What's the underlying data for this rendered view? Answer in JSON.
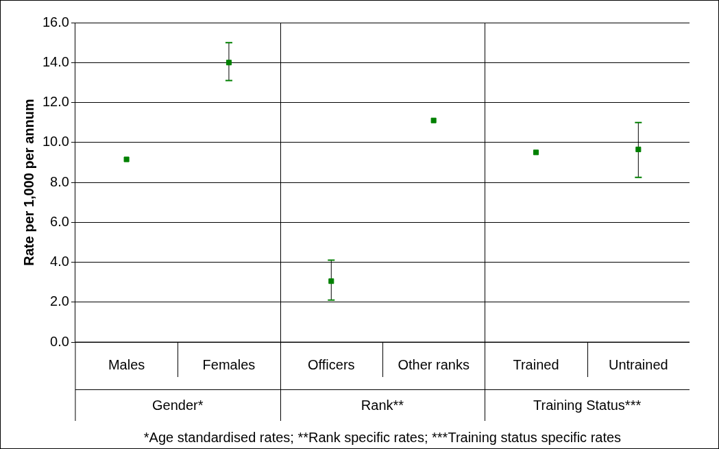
{
  "chart_data": {
    "type": "scatter",
    "ylabel": "Rate per 1,000 per annum",
    "categories": [
      "Males",
      "Females",
      "Officers",
      "Other ranks",
      "Trained",
      "Untrained"
    ],
    "series": [
      {
        "color": "#008000",
        "values": [
          9.15,
          14.0,
          3.05,
          11.1,
          9.5,
          9.65
        ],
        "errors": [
          null,
          [
            13.1,
            15.0
          ],
          [
            2.1,
            4.1
          ],
          null,
          null,
          [
            8.25,
            11.0
          ]
        ]
      }
    ],
    "ylim": [
      0,
      16
    ],
    "yticks": [
      {
        "value": 0,
        "label": "0.0"
      },
      {
        "value": 2,
        "label": "2.0"
      },
      {
        "value": 4,
        "label": "4.0"
      },
      {
        "value": 6,
        "label": "6.0"
      },
      {
        "value": 8,
        "label": "8.0"
      },
      {
        "value": 10,
        "label": "10.0"
      },
      {
        "value": 12,
        "label": "12.0"
      },
      {
        "value": 14,
        "label": "14.0"
      },
      {
        "value": 16,
        "label": "16.0"
      }
    ],
    "grid": "y",
    "legend": false,
    "marker": "square",
    "annotations": [
      "Gender*",
      "Rank**",
      "Training Status***",
      "*Age standardised rates; **Rank specific rates; ***Training status specific rates"
    ]
  }
}
